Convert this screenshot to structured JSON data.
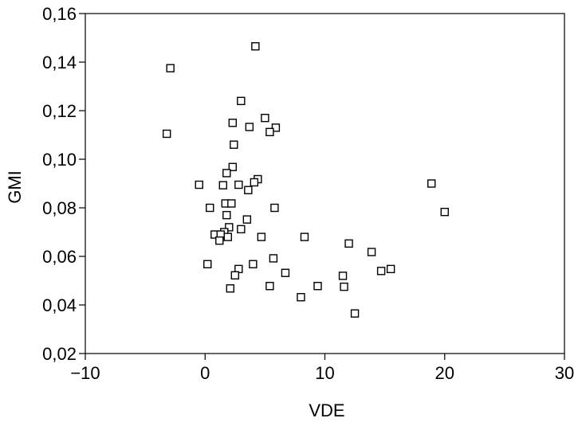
{
  "chart_data": {
    "type": "scatter",
    "title": "",
    "xlabel": "VDE",
    "ylabel": "GMI",
    "xlim": [
      -10,
      30
    ],
    "ylim": [
      0.02,
      0.16
    ],
    "xticks": [
      -10,
      0,
      10,
      20,
      30
    ],
    "xtick_labels": [
      "−10",
      "0",
      "10",
      "20",
      "30"
    ],
    "yticks": [
      0.02,
      0.04,
      0.06,
      0.08,
      0.1,
      0.12,
      0.14,
      0.16
    ],
    "ytick_labels": [
      "0,02",
      "0,04",
      "0,06",
      "0,08",
      "0,10",
      "0,12",
      "0,14",
      "0,16"
    ],
    "grid": false,
    "marker": "hollow-square",
    "series": [
      {
        "points": [
          [
            4.2,
            0.1465
          ],
          [
            -2.9,
            0.1375
          ],
          [
            -3.2,
            0.1105
          ],
          [
            3.0,
            0.124
          ],
          [
            5.0,
            0.117
          ],
          [
            2.3,
            0.115
          ],
          [
            3.7,
            0.1133
          ],
          [
            5.9,
            0.113
          ],
          [
            5.4,
            0.1112
          ],
          [
            2.4,
            0.106
          ],
          [
            2.3,
            0.0968
          ],
          [
            1.8,
            0.0943
          ],
          [
            4.4,
            0.0918
          ],
          [
            4.1,
            0.0905
          ],
          [
            -0.5,
            0.0895
          ],
          [
            1.5,
            0.0893
          ],
          [
            2.8,
            0.0895
          ],
          [
            3.6,
            0.0873
          ],
          [
            1.7,
            0.0818
          ],
          [
            2.2,
            0.0818
          ],
          [
            0.4,
            0.08
          ],
          [
            5.8,
            0.08
          ],
          [
            1.8,
            0.077
          ],
          [
            3.5,
            0.0752
          ],
          [
            2.0,
            0.072
          ],
          [
            3.0,
            0.0712
          ],
          [
            1.6,
            0.07
          ],
          [
            0.8,
            0.069
          ],
          [
            1.3,
            0.069
          ],
          [
            1.9,
            0.068
          ],
          [
            4.7,
            0.068
          ],
          [
            8.3,
            0.068
          ],
          [
            1.2,
            0.0665
          ],
          [
            12.0,
            0.0653
          ],
          [
            13.9,
            0.0618
          ],
          [
            5.7,
            0.0592
          ],
          [
            0.2,
            0.0568
          ],
          [
            4.0,
            0.0568
          ],
          [
            2.8,
            0.0548
          ],
          [
            15.5,
            0.0548
          ],
          [
            14.7,
            0.054
          ],
          [
            6.7,
            0.0532
          ],
          [
            2.5,
            0.0522
          ],
          [
            11.5,
            0.052
          ],
          [
            5.4,
            0.0478
          ],
          [
            9.4,
            0.0478
          ],
          [
            11.6,
            0.0475
          ],
          [
            2.1,
            0.0468
          ],
          [
            8.0,
            0.0432
          ],
          [
            12.5,
            0.0365
          ],
          [
            18.9,
            0.09
          ],
          [
            20.0,
            0.0783
          ]
        ]
      }
    ]
  }
}
